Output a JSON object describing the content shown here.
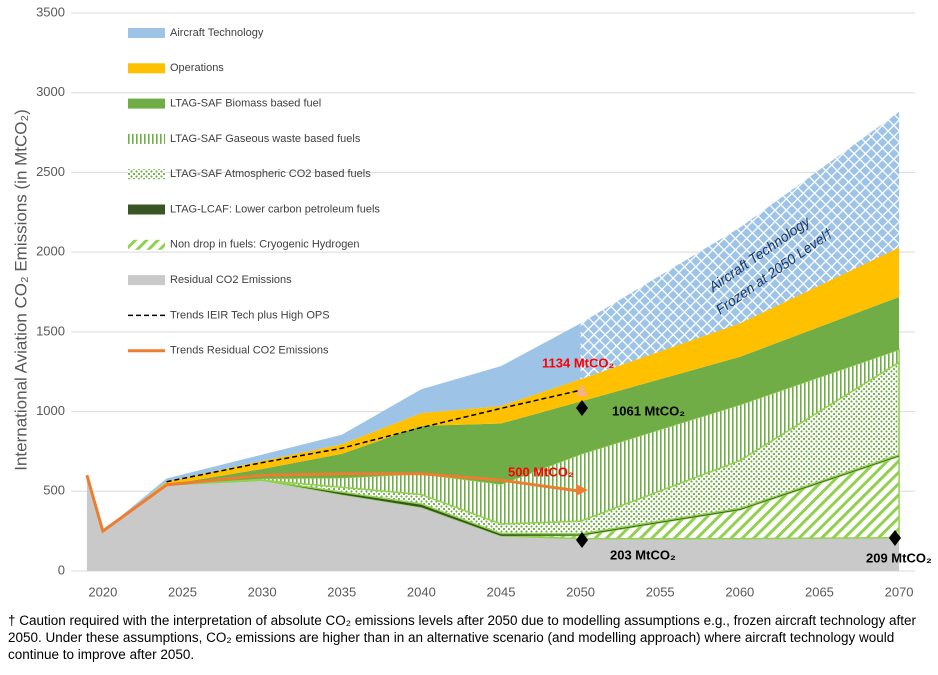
{
  "chart_data": {
    "type": "stacked-area",
    "y_label": "International Aviation CO₂ Emissions (in MtCO₂)",
    "x": [
      2019,
      2020,
      2024,
      2030,
      2035,
      2040,
      2045,
      2050,
      2060,
      2070
    ],
    "xlim": [
      2018,
      2071
    ],
    "xticks": [
      2020,
      2025,
      2030,
      2035,
      2040,
      2045,
      2050,
      2055,
      2060,
      2065,
      2070
    ],
    "ylim": [
      0,
      3500
    ],
    "yticks": [
      0,
      500,
      1000,
      1500,
      2000,
      2500,
      3000,
      3500
    ],
    "grid": true,
    "legend": "upper-left",
    "series": [
      {
        "name": "Aircraft Technology",
        "color": "#9dc3e6",
        "pattern": "solid",
        "values": [
          0,
          0,
          20,
          40,
          60,
          150,
          250,
          350,
          600,
          850
        ]
      },
      {
        "name": "Operations",
        "color": "#ffc000",
        "pattern": "solid",
        "values": [
          0,
          0,
          20,
          50,
          60,
          80,
          110,
          140,
          210,
          310
        ]
      },
      {
        "name": "LTAG-SAF Biomass based fuel",
        "color": "#70ad47",
        "pattern": "solid",
        "values": [
          0,
          0,
          0,
          60,
          150,
          300,
          380,
          330,
          300,
          330
        ]
      },
      {
        "name": "LTAG-SAF Gaseous waste based fuels",
        "color": "#70ad47",
        "pattern": "vertical",
        "values": [
          0,
          0,
          0,
          10,
          60,
          130,
          250,
          420,
          350,
          80
        ]
      },
      {
        "name": "LTAG-SAF Atmospheric CO2 based fuels",
        "color": "#70ad47",
        "pattern": "dots",
        "values": [
          0,
          0,
          0,
          0,
          30,
          60,
          60,
          80,
          300,
          580
        ]
      },
      {
        "name": "LTAG-LCAF: Lower carbon petroleum fuels",
        "color": "#375623",
        "pattern": "solid",
        "values": [
          0,
          0,
          0,
          0,
          15,
          20,
          15,
          10,
          10,
          10
        ]
      },
      {
        "name": "Non drop in fuels: Cryogenic Hydrogen",
        "color": "#92d050",
        "pattern": "diagonal",
        "values": [
          0,
          0,
          0,
          0,
          0,
          0,
          0,
          20,
          180,
          510
        ]
      },
      {
        "name": "Residual CO2 Emissions",
        "color": "#c9c9c9",
        "pattern": "solid",
        "values": [
          600,
          250,
          540,
          570,
          480,
          400,
          220,
          203,
          203,
          209
        ]
      }
    ],
    "lines": [
      {
        "name": "Trends IEIR Tech plus High OPS",
        "color": "#000000",
        "dash": true,
        "x": [
          2024,
          2030,
          2035,
          2040,
          2045,
          2050
        ],
        "values": [
          560,
          680,
          770,
          900,
          1020,
          1134
        ]
      },
      {
        "name": "Trends Residual CO2 Emissions",
        "color": "#ed7d31",
        "dash": false,
        "x": [
          2019,
          2020,
          2024,
          2030,
          2035,
          2040,
          2045,
          2050
        ],
        "values": [
          600,
          250,
          540,
          600,
          610,
          610,
          570,
          500
        ]
      }
    ],
    "annotations": [
      "1134 MtCO₂",
      "1061 MtCO₂",
      "500 MtCO₂",
      "203 MtCO₂",
      "209 MtCO₂",
      "Aircraft Technology",
      "Frozen at 2050 Level†"
    ],
    "footnote": "† Caution required with the interpretation of absolute CO₂ emissions levels after 2050 due to modelling assumptions e.g., frozen aircraft technology after 2050. Under these assumptions, CO₂ emissions are higher than in an alternative scenario (and modelling approach) where aircraft technology would continue to improve after 2050."
  }
}
